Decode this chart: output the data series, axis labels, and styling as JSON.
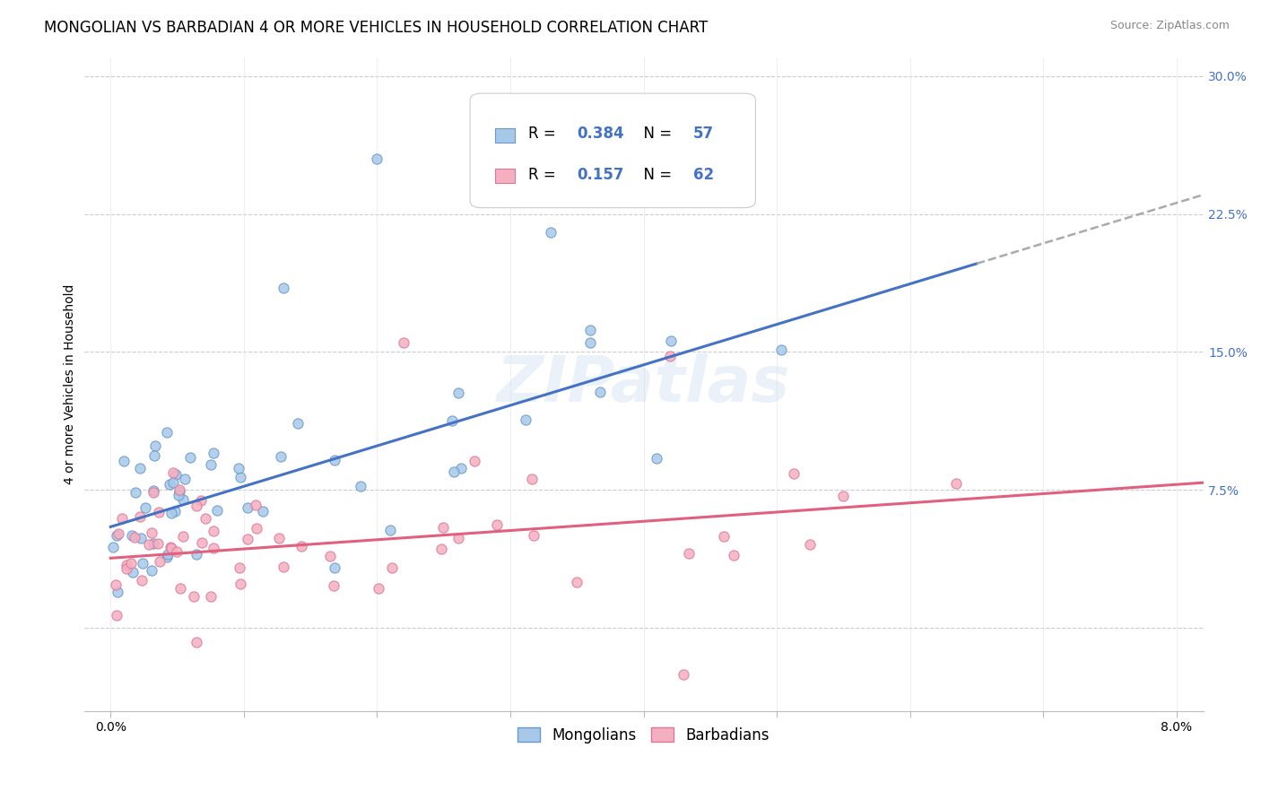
{
  "title": "MONGOLIAN VS BARBADIAN 4 OR MORE VEHICLES IN HOUSEHOLD CORRELATION CHART",
  "source": "Source: ZipAtlas.com",
  "ylabel": "4 or more Vehicles in Household",
  "ytick_vals": [
    -0.025,
    0.0,
    0.075,
    0.15,
    0.225,
    0.3
  ],
  "ytick_labels": [
    "",
    "",
    "7.5%",
    "15.0%",
    "22.5%",
    "30.0%"
  ],
  "xlim": [
    -0.002,
    0.082
  ],
  "ylim": [
    -0.045,
    0.31
  ],
  "xtick_vals": [
    0.0,
    0.01,
    0.02,
    0.03,
    0.04,
    0.05,
    0.06,
    0.07,
    0.08
  ],
  "xtick_labels": [
    "0.0%",
    "",
    "",
    "",
    "",
    "",
    "",
    "",
    "8.0%"
  ],
  "mongolian_color": "#a8c8e8",
  "mongolian_edge": "#6699cc",
  "barbadian_color": "#f4b0c0",
  "barbadian_edge": "#dd7799",
  "trend_mongolian_color": "#4472c4",
  "trend_barbadian_color": "#e06080",
  "trend_ext_color": "#aaaaaa",
  "legend_R_mongolian": "0.384",
  "legend_N_mongolian": "57",
  "legend_R_barbadian": "0.157",
  "legend_N_barbadian": "62",
  "watermark": "ZIPatlas",
  "background_color": "#ffffff",
  "grid_color": "#cccccc",
  "title_fontsize": 12,
  "axis_label_fontsize": 10,
  "tick_fontsize": 10,
  "legend_fontsize": 12,
  "source_fontsize": 9,
  "mongolian_slope": 2.2,
  "mongolian_intercept": 0.055,
  "barbadian_slope": 0.5,
  "barbadian_intercept": 0.038
}
